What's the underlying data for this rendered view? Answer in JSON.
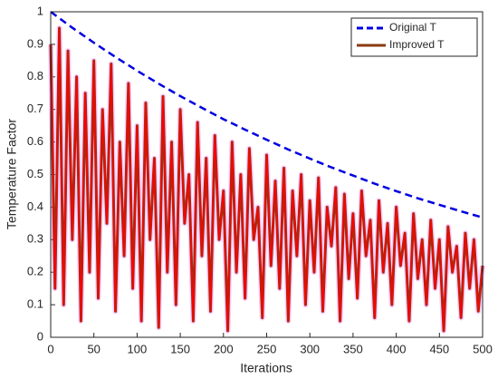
{
  "chart_data": {
    "type": "line",
    "xlabel": "Iterations",
    "ylabel": "Temperature Factor",
    "xlim": [
      0,
      500
    ],
    "xticks": [
      0,
      50,
      100,
      150,
      200,
      250,
      300,
      350,
      400,
      450,
      500
    ],
    "ylim": [
      0,
      1
    ],
    "yticks": [
      0,
      0.1,
      0.2,
      0.3,
      0.4,
      0.5,
      0.6,
      0.7,
      0.8,
      0.9,
      1
    ],
    "legend": "upper right",
    "series": [
      {
        "name": "Original T",
        "color": "#0000e0",
        "dashed": true,
        "x": [
          0,
          25,
          50,
          75,
          100,
          125,
          150,
          175,
          200,
          225,
          250,
          275,
          300,
          325,
          350,
          375,
          400,
          425,
          450,
          475,
          500
        ],
        "values": [
          1,
          0.951,
          0.905,
          0.861,
          0.819,
          0.779,
          0.741,
          0.705,
          0.67,
          0.638,
          0.607,
          0.577,
          0.549,
          0.522,
          0.497,
          0.472,
          0.449,
          0.427,
          0.407,
          0.387,
          0.368
        ]
      },
      {
        "name": "Improved T",
        "color": "#ff0000",
        "edge_color": "#8b3a12",
        "halo_color": "#ff66ff",
        "x": [
          0,
          5,
          10,
          15,
          20,
          25,
          30,
          35,
          40,
          45,
          50,
          55,
          60,
          65,
          70,
          75,
          80,
          85,
          90,
          95,
          100,
          105,
          110,
          115,
          120,
          125,
          130,
          135,
          140,
          145,
          150,
          155,
          160,
          165,
          170,
          175,
          180,
          185,
          190,
          195,
          200,
          205,
          210,
          215,
          220,
          225,
          230,
          235,
          240,
          245,
          250,
          255,
          260,
          265,
          270,
          275,
          280,
          285,
          290,
          295,
          300,
          305,
          310,
          315,
          320,
          325,
          330,
          335,
          340,
          345,
          350,
          355,
          360,
          365,
          370,
          375,
          380,
          385,
          390,
          395,
          400,
          405,
          410,
          415,
          420,
          425,
          430,
          435,
          440,
          445,
          450,
          455,
          460,
          465,
          470,
          475,
          480,
          485,
          490,
          495,
          500
        ],
        "values": [
          0.9,
          0.15,
          0.95,
          0.1,
          0.88,
          0.3,
          0.8,
          0.05,
          0.75,
          0.2,
          0.85,
          0.12,
          0.7,
          0.35,
          0.84,
          0.08,
          0.6,
          0.25,
          0.78,
          0.15,
          0.65,
          0.05,
          0.72,
          0.3,
          0.55,
          0.03,
          0.74,
          0.2,
          0.6,
          0.1,
          0.7,
          0.35,
          0.5,
          0.05,
          0.66,
          0.25,
          0.55,
          0.08,
          0.62,
          0.3,
          0.45,
          0.02,
          0.6,
          0.2,
          0.5,
          0.12,
          0.58,
          0.3,
          0.4,
          0.06,
          0.56,
          0.22,
          0.48,
          0.15,
          0.52,
          0.05,
          0.45,
          0.25,
          0.5,
          0.1,
          0.42,
          0.2,
          0.49,
          0.08,
          0.4,
          0.28,
          0.46,
          0.05,
          0.44,
          0.18,
          0.38,
          0.12,
          0.45,
          0.25,
          0.36,
          0.06,
          0.42,
          0.2,
          0.35,
          0.1,
          0.4,
          0.22,
          0.32,
          0.05,
          0.38,
          0.18,
          0.3,
          0.1,
          0.36,
          0.15,
          0.3,
          0.02,
          0.34,
          0.2,
          0.28,
          0.06,
          0.32,
          0.15,
          0.3,
          0.08,
          0.22
        ]
      }
    ]
  }
}
